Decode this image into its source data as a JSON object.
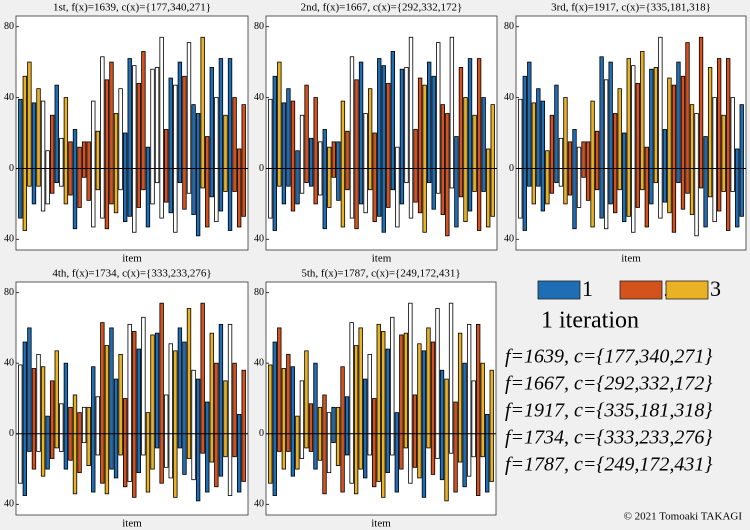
{
  "items": {
    "upper": [
      39,
      52,
      60,
      37,
      45,
      38,
      10,
      30,
      47,
      17,
      40,
      15,
      22,
      12,
      15,
      15,
      38,
      21,
      63,
      50,
      60,
      31,
      45,
      20,
      62,
      58,
      48,
      66,
      12,
      56,
      57,
      74,
      22,
      51,
      47,
      60,
      52,
      71,
      36,
      31,
      74,
      18,
      57,
      40,
      62,
      30,
      62,
      40,
      11,
      36
    ],
    "lower": [
      -28,
      -35,
      -10,
      -20,
      -10,
      -24,
      -20,
      -14,
      -8,
      -10,
      -20,
      -15,
      -34,
      -22,
      -5,
      -18,
      -33,
      -12,
      -28,
      -34,
      -20,
      -25,
      -12,
      -30,
      -27,
      -36,
      -22,
      -12,
      -33,
      -20,
      -8,
      -28,
      -19,
      -25,
      -36,
      -8,
      -23,
      -14,
      -26,
      -38,
      -11,
      -33,
      -16,
      -30,
      -24,
      -13,
      -35,
      -13,
      -33,
      -27
    ]
  },
  "chart_data": [
    {
      "type": "bar",
      "title": "1st,  f(x)=1639,  c(x)={177,340,271}",
      "xlabel": "item",
      "ylim": [
        -46,
        86
      ],
      "yticks": [
        80,
        40,
        0,
        {
          "value": -40,
          "label": "40"
        }
      ],
      "groups": [
        1,
        3,
        3,
        1,
        3,
        0,
        0,
        2,
        1,
        0,
        3,
        2,
        1,
        2,
        2,
        2,
        0,
        3,
        0,
        2,
        2,
        3,
        0,
        1,
        1,
        0,
        2,
        2,
        1,
        0,
        0,
        0,
        2,
        1,
        0,
        1,
        2,
        0,
        1,
        1,
        3,
        2,
        1,
        0,
        1,
        3,
        1,
        2,
        2,
        2
      ]
    },
    {
      "type": "bar",
      "title": "2nd,  f(x)=1667,  c(x)={292,332,172}",
      "xlabel": "item",
      "ylim": [
        -46,
        86
      ],
      "yticks": [
        80,
        40,
        0,
        {
          "value": -40,
          "label": "40"
        }
      ],
      "groups": [
        0,
        1,
        3,
        1,
        1,
        2,
        1,
        0,
        2,
        1,
        2,
        0,
        1,
        3,
        2,
        1,
        3,
        2,
        0,
        2,
        1,
        0,
        3,
        2,
        1,
        1,
        2,
        1,
        0,
        1,
        0,
        0,
        2,
        2,
        3,
        1,
        1,
        0,
        2,
        2,
        0,
        1,
        2,
        3,
        1,
        3,
        2,
        1,
        3,
        3
      ]
    },
    {
      "type": "bar",
      "title": "3rd,  f(x)=1917,  c(x)={335,181,318}",
      "xlabel": "item",
      "ylim": [
        -46,
        86
      ],
      "yticks": [
        80,
        40,
        0,
        {
          "value": -40,
          "label": "40"
        }
      ],
      "groups": [
        0,
        1,
        1,
        3,
        1,
        1,
        3,
        2,
        1,
        0,
        3,
        2,
        1,
        0,
        2,
        2,
        3,
        2,
        1,
        0,
        1,
        2,
        3,
        1,
        3,
        0,
        2,
        3,
        2,
        1,
        3,
        0,
        1,
        3,
        2,
        1,
        2,
        2,
        3,
        0,
        2,
        1,
        3,
        0,
        2,
        3,
        2,
        0,
        1,
        1
      ]
    },
    {
      "type": "bar",
      "title": "4th,  f(x)=1734,  c(x)={333,233,276}",
      "xlabel": "item",
      "ylim": [
        -46,
        86
      ],
      "yticks": [
        80,
        40,
        0,
        {
          "value": -40,
          "label": "40"
        }
      ],
      "groups": [
        0,
        1,
        1,
        2,
        0,
        3,
        1,
        2,
        3,
        0,
        1,
        2,
        3,
        2,
        0,
        3,
        1,
        0,
        2,
        3,
        1,
        1,
        3,
        2,
        0,
        2,
        1,
        0,
        3,
        3,
        1,
        2,
        0,
        0,
        3,
        1,
        1,
        3,
        0,
        1,
        2,
        1,
        3,
        2,
        1,
        3,
        0,
        2,
        1,
        2
      ]
    },
    {
      "type": "bar",
      "title": "5th,  f(x)=1787,  c(x)={249,172,431}",
      "xlabel": "item",
      "ylim": [
        -46,
        86
      ],
      "yticks": [
        80,
        40,
        0,
        {
          "value": -40,
          "label": "40"
        }
      ],
      "groups": [
        3,
        1,
        2,
        3,
        2,
        1,
        3,
        0,
        3,
        2,
        1,
        3,
        2,
        0,
        1,
        3,
        2,
        1,
        0,
        3,
        3,
        1,
        0,
        2,
        3,
        3,
        1,
        0,
        1,
        2,
        3,
        0,
        2,
        3,
        1,
        3,
        2,
        0,
        1,
        3,
        0,
        2,
        3,
        1,
        0,
        0,
        2,
        3,
        1,
        3
      ]
    }
  ],
  "legend": {
    "series": [
      {
        "name": "1",
        "color": "#1f6db5"
      },
      {
        "name": "2",
        "color": "#d4521d"
      },
      {
        "name": "3",
        "color": "#e9b124"
      }
    ],
    "caption": "1 iteration",
    "lines": [
      "f=1639,  c={177,340,271}",
      "f=1667,  c={292,332,172}",
      "f=1917,  c={335,181,318}",
      "f=1734,  c={333,233,276}",
      "f=1787,  c={249,172,431}"
    ]
  },
  "credit": "© 2021 Tomoaki TAKAGI"
}
